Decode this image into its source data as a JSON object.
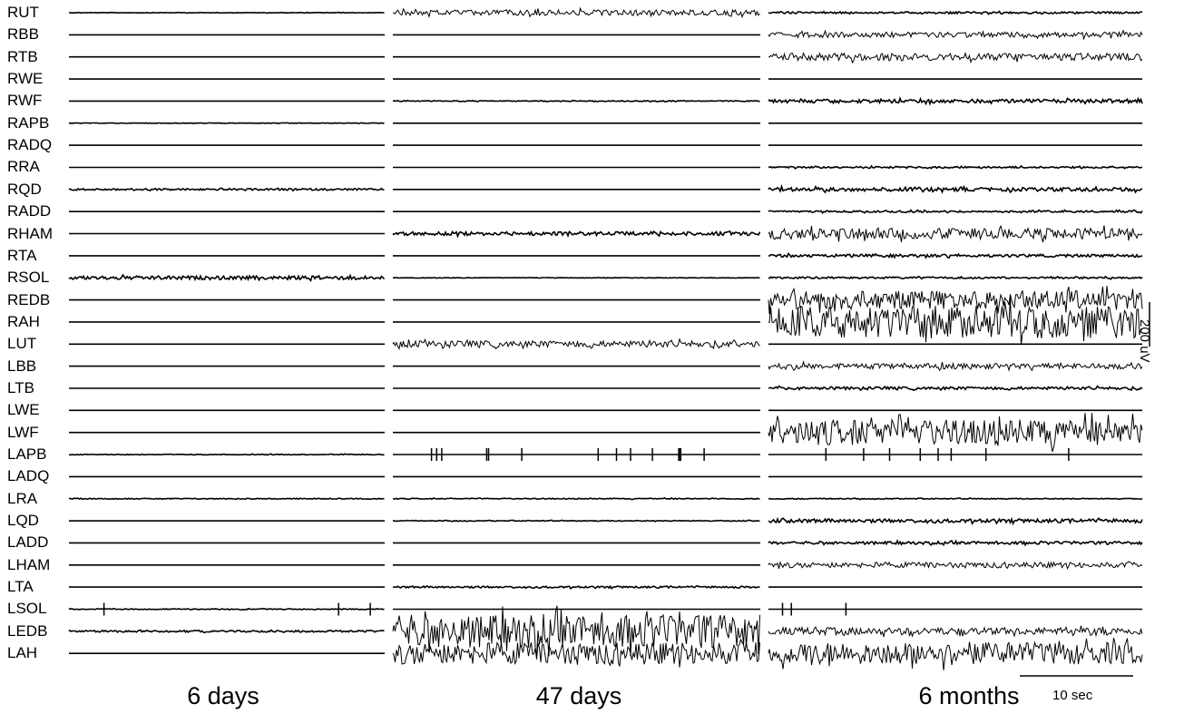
{
  "chart_data": {
    "type": "line",
    "title": "",
    "channels": [
      "RUT",
      "RBB",
      "RTB",
      "RWE",
      "RWF",
      "RAPB",
      "RADQ",
      "RRA",
      "RQD",
      "RADD",
      "RHAM",
      "RTA",
      "RSOL",
      "REDB",
      "RAH",
      "LUT",
      "LBB",
      "LTB",
      "LWE",
      "LWF",
      "LAPB",
      "LADQ",
      "LRA",
      "LQD",
      "LADD",
      "LHAM",
      "LTA",
      "LSOL",
      "LEDB",
      "LAH"
    ],
    "panels": [
      {
        "name": "6 days",
        "amplitude": [
          0.3,
          0,
          0,
          0,
          0,
          0.3,
          0,
          0,
          1,
          0,
          0,
          0,
          2,
          0,
          0,
          0,
          0,
          0,
          0,
          0,
          0.4,
          0,
          0.5,
          0,
          0,
          0,
          0,
          0.5,
          1,
          0
        ],
        "spikes": [
          0,
          0,
          0,
          0,
          0,
          0,
          0,
          0,
          0,
          0,
          0,
          0,
          0,
          0,
          0,
          0,
          0,
          0,
          0,
          0,
          0,
          0,
          0,
          0,
          0,
          0,
          0,
          3,
          0,
          0
        ]
      },
      {
        "name": "47 days",
        "amplitude": [
          3,
          0,
          0,
          0,
          0.5,
          0,
          0,
          0,
          0,
          0,
          2,
          0,
          0.3,
          0,
          0,
          3.5,
          0,
          0,
          0,
          0,
          0,
          0,
          0.5,
          0.5,
          0,
          0,
          1,
          0,
          18,
          12
        ],
        "spikes": [
          0,
          0,
          0,
          0,
          0,
          0,
          0,
          0,
          0,
          0,
          0,
          0,
          0,
          0,
          0,
          0,
          0,
          0,
          0,
          0,
          14,
          0,
          0,
          0,
          0,
          0,
          0,
          0,
          0,
          0
        ]
      },
      {
        "name": "6 months",
        "amplitude": [
          1,
          3,
          4,
          0,
          2,
          0,
          0,
          1,
          2,
          1,
          6,
          1.5,
          1,
          10,
          18,
          0,
          3,
          1.5,
          0,
          14,
          0,
          0,
          0.5,
          2,
          1.5,
          3,
          0,
          0,
          4,
          12
        ],
        "spikes": [
          0,
          0,
          0,
          0,
          0,
          0,
          0,
          0,
          0,
          0,
          0,
          0,
          0,
          0,
          0,
          0,
          0,
          0,
          0,
          0,
          8,
          0,
          0,
          0,
          0,
          0,
          0,
          3,
          0,
          0
        ]
      }
    ],
    "scale_bars": {
      "amplitude": "200 uV",
      "time": "10 sec"
    }
  }
}
